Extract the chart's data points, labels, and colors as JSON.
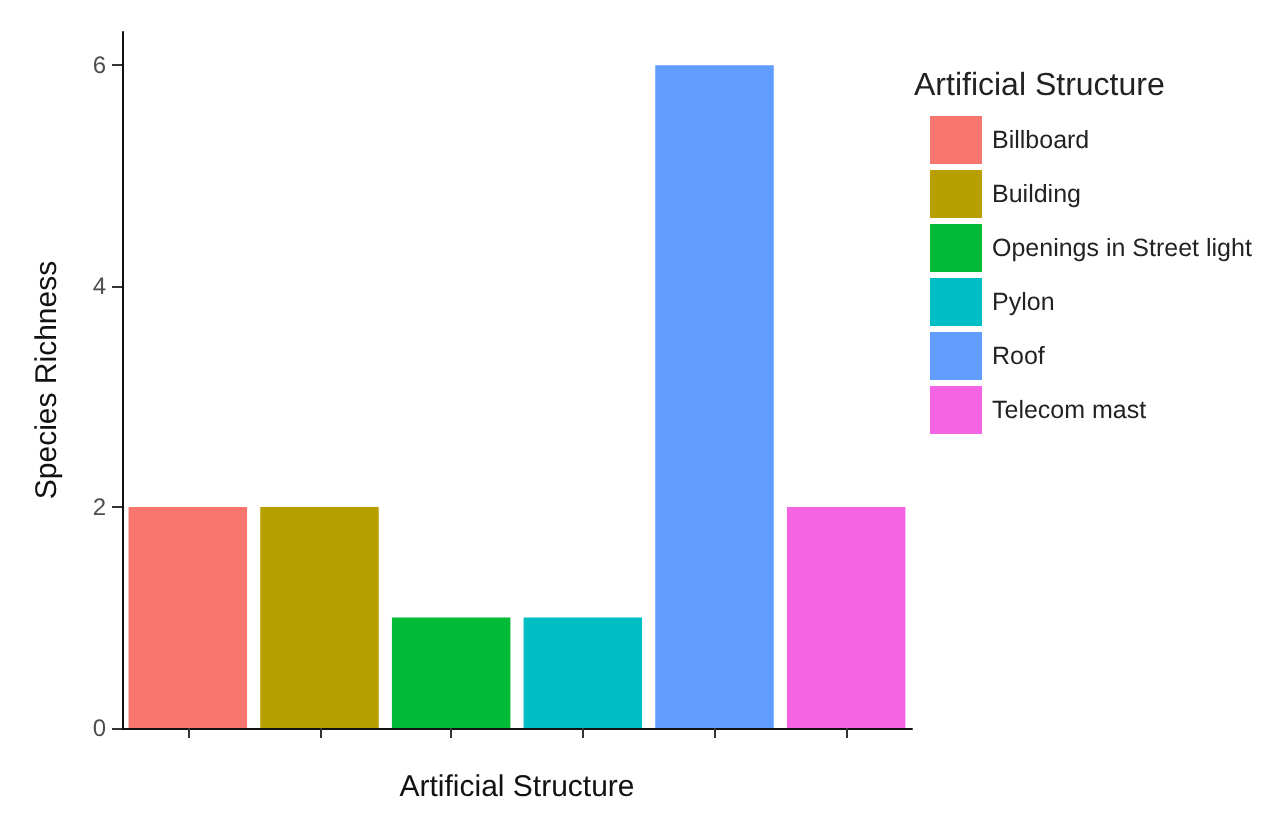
{
  "chart_data": {
    "type": "bar",
    "xlabel": "Artificial Structure",
    "ylabel": "Species Richness",
    "legend_title": "Artificial Structure",
    "categories": [
      null,
      null,
      null,
      null,
      null,
      null
    ],
    "series": [
      {
        "name": "Billboard",
        "color": "#f8766d",
        "values": [
          2,
          null,
          null,
          null,
          null,
          null
        ]
      },
      {
        "name": "Building",
        "color": "#b79f00",
        "values": [
          null,
          2,
          null,
          null,
          null,
          null
        ]
      },
      {
        "name": "Openings in Street light",
        "color": "#00ba38",
        "values": [
          null,
          null,
          1,
          null,
          null,
          null
        ]
      },
      {
        "name": "Pylon",
        "color": "#00bfc4",
        "values": [
          null,
          null,
          null,
          1,
          null,
          null
        ]
      },
      {
        "name": "Roof",
        "color": "#619cff",
        "values": [
          null,
          null,
          null,
          null,
          6,
          null
        ]
      },
      {
        "name": "Telecom mast",
        "color": "#f564e3",
        "values": [
          null,
          null,
          null,
          null,
          null,
          2
        ]
      }
    ],
    "ylim": [
      0,
      6.3
    ],
    "yticks": [
      0,
      2,
      4,
      6
    ],
    "grid": false,
    "legend": "right",
    "tick_labels": "y"
  }
}
